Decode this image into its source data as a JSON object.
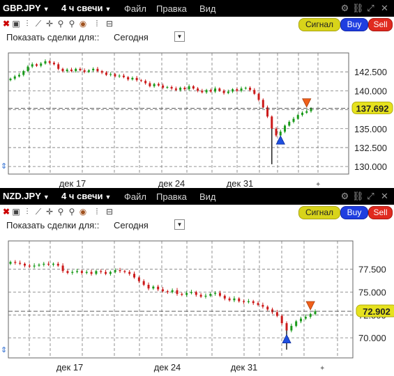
{
  "panels": [
    {
      "symbol": "GBP.JPY",
      "timeframe": "4 ч свечи",
      "menu": [
        "Файл",
        "Правка",
        "Вид"
      ],
      "buttons": {
        "signal": "Сигнал",
        "buy": "Buy",
        "sell": "Sell"
      },
      "deals_label": "Показать сделки для::",
      "deals_value": "Сегодня",
      "price_badge": "137.692",
      "chart_data": {
        "type": "candlestick",
        "y_ticks": [
          "142.500",
          "140.000",
          "137.500",
          "135.000",
          "132.500",
          "130.000"
        ],
        "ylim": [
          129.0,
          145.0
        ],
        "x_ticks": [
          "дек 17",
          "дек 24",
          "дек 31"
        ],
        "last_price": 137.692,
        "series_close": [
          141.6,
          141.9,
          142.1,
          142.6,
          143.2,
          143.5,
          143.3,
          143.6,
          143.9,
          143.7,
          143.5,
          142.9,
          142.6,
          142.8,
          142.6,
          142.9,
          142.7,
          142.5,
          142.7,
          142.9,
          142.6,
          142.4,
          142.1,
          142.2,
          141.9,
          142.0,
          141.8,
          141.5,
          141.7,
          141.4,
          141.3,
          141.0,
          140.6,
          140.9,
          140.7,
          140.4,
          140.5,
          140.3,
          140.1,
          140.4,
          140.2,
          140.6,
          140.3,
          140.0,
          139.8,
          140.1,
          139.9,
          140.3,
          140.0,
          139.7,
          139.9,
          140.2,
          140.0,
          140.3,
          140.4,
          140.1,
          139.6,
          138.8,
          137.8,
          136.6,
          135.0,
          134.1,
          134.6,
          135.4,
          135.9,
          136.3,
          136.8,
          137.1,
          137.3,
          137.692
        ],
        "markers": [
          {
            "type": "buy",
            "index": 62
          },
          {
            "type": "sell",
            "index": 68
          }
        ]
      }
    },
    {
      "symbol": "NZD.JPY",
      "timeframe": "4 ч свечи",
      "menu": [
        "Файл",
        "Правка",
        "Вид"
      ],
      "buttons": {
        "signal": "Сигнал",
        "buy": "Buy",
        "sell": "Sell"
      },
      "deals_label": "Показать сделки для::",
      "deals_value": "Сегодня",
      "price_badge": "72.902",
      "chart_data": {
        "type": "candlestick",
        "y_ticks": [
          "77.500",
          "75.000",
          "72.500",
          "70.000"
        ],
        "ylim": [
          67.8,
          80.6
        ],
        "x_ticks": [
          "дек 17",
          "дек 24",
          "дек 31"
        ],
        "last_price": 72.902,
        "series_close": [
          78.3,
          78.2,
          78.1,
          77.9,
          77.8,
          77.9,
          78.0,
          78.1,
          78.0,
          78.1,
          77.9,
          77.3,
          77.1,
          77.2,
          77.3,
          77.1,
          77.2,
          77.0,
          77.3,
          77.2,
          77.0,
          77.2,
          77.4,
          77.3,
          77.2,
          77.0,
          76.6,
          76.2,
          75.8,
          75.4,
          75.6,
          75.3,
          75.1,
          75.0,
          75.2,
          74.8,
          74.7,
          74.9,
          75.0,
          74.7,
          74.5,
          74.6,
          74.8,
          74.9,
          74.6,
          74.3,
          74.1,
          74.3,
          74.0,
          73.9,
          74.0,
          73.8,
          73.6,
          73.4,
          73.1,
          72.8,
          72.4,
          71.6,
          70.8,
          71.3,
          71.8,
          72.1,
          72.3,
          72.6,
          72.902
        ],
        "markers": [
          {
            "type": "buy",
            "index": 58
          },
          {
            "type": "sell",
            "index": 63
          }
        ]
      }
    }
  ],
  "icon_names": [
    "close-icon",
    "cursor-icon",
    "crosshair-icon",
    "trendline-icon",
    "zoom-in-icon",
    "zoom-out-icon",
    "zoom-reset-icon",
    "bars-icon"
  ]
}
